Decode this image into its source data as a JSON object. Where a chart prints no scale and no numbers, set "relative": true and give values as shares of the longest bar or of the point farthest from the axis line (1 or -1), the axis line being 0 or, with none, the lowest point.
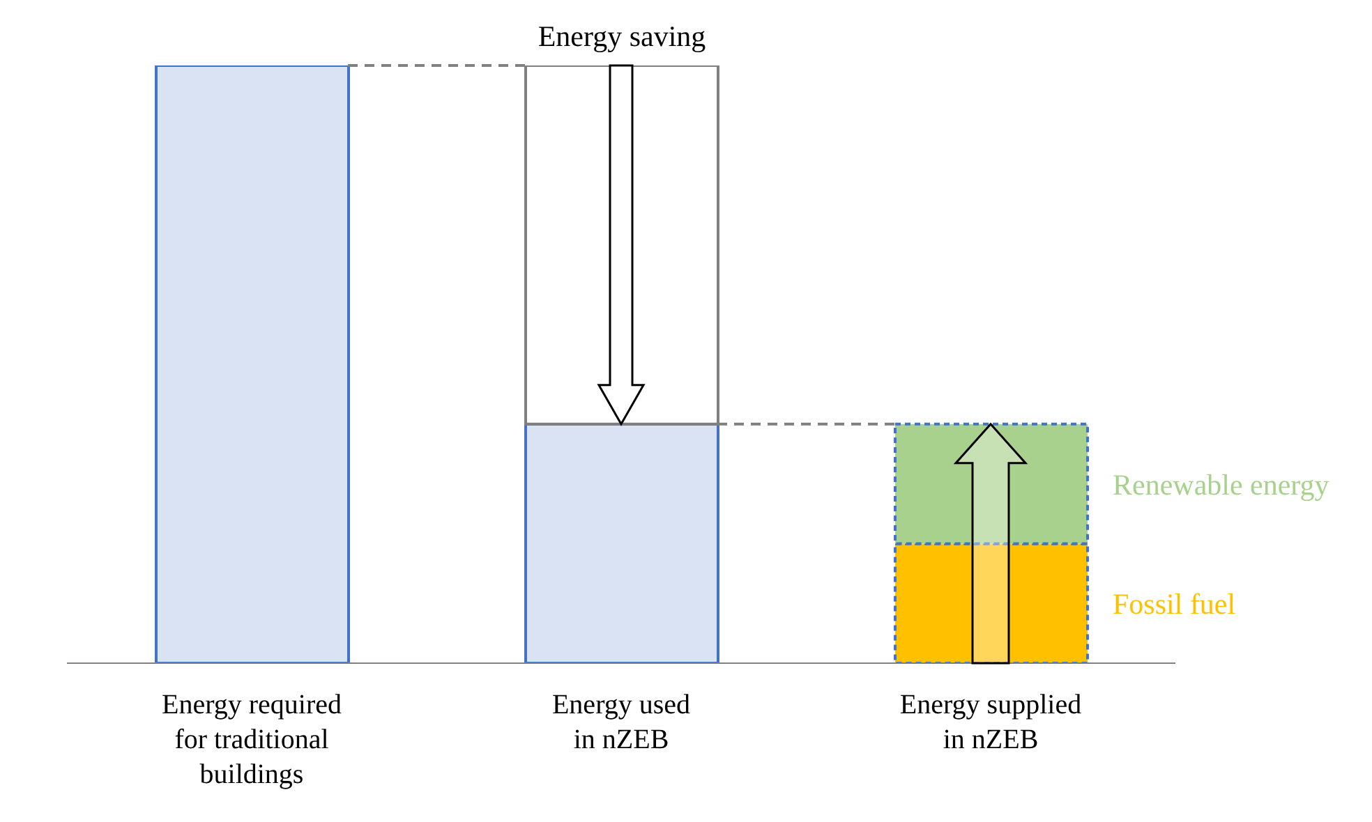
{
  "chart_data": {
    "type": "bar",
    "stacked": true,
    "relative": true,
    "categories": [
      "Energy required\nfor traditional\nbuildings",
      "Energy used\nin nZEB",
      "Energy supplied\nin nZEB"
    ],
    "series": [
      {
        "color": "#dae3f3",
        "values": [
          1,
          0.4,
          null
        ]
      },
      {
        "name": "Energy saving",
        "color": "#ffffff",
        "values": [
          null,
          0.6,
          null
        ]
      },
      {
        "name": "Fossil fuel",
        "color": "#ffc000",
        "values": [
          null,
          null,
          0.2
        ]
      },
      {
        "name": "Renewable energy",
        "color": "#a9d18e",
        "values": [
          null,
          null,
          0.2
        ]
      }
    ],
    "grid": false,
    "legend": false
  }
}
